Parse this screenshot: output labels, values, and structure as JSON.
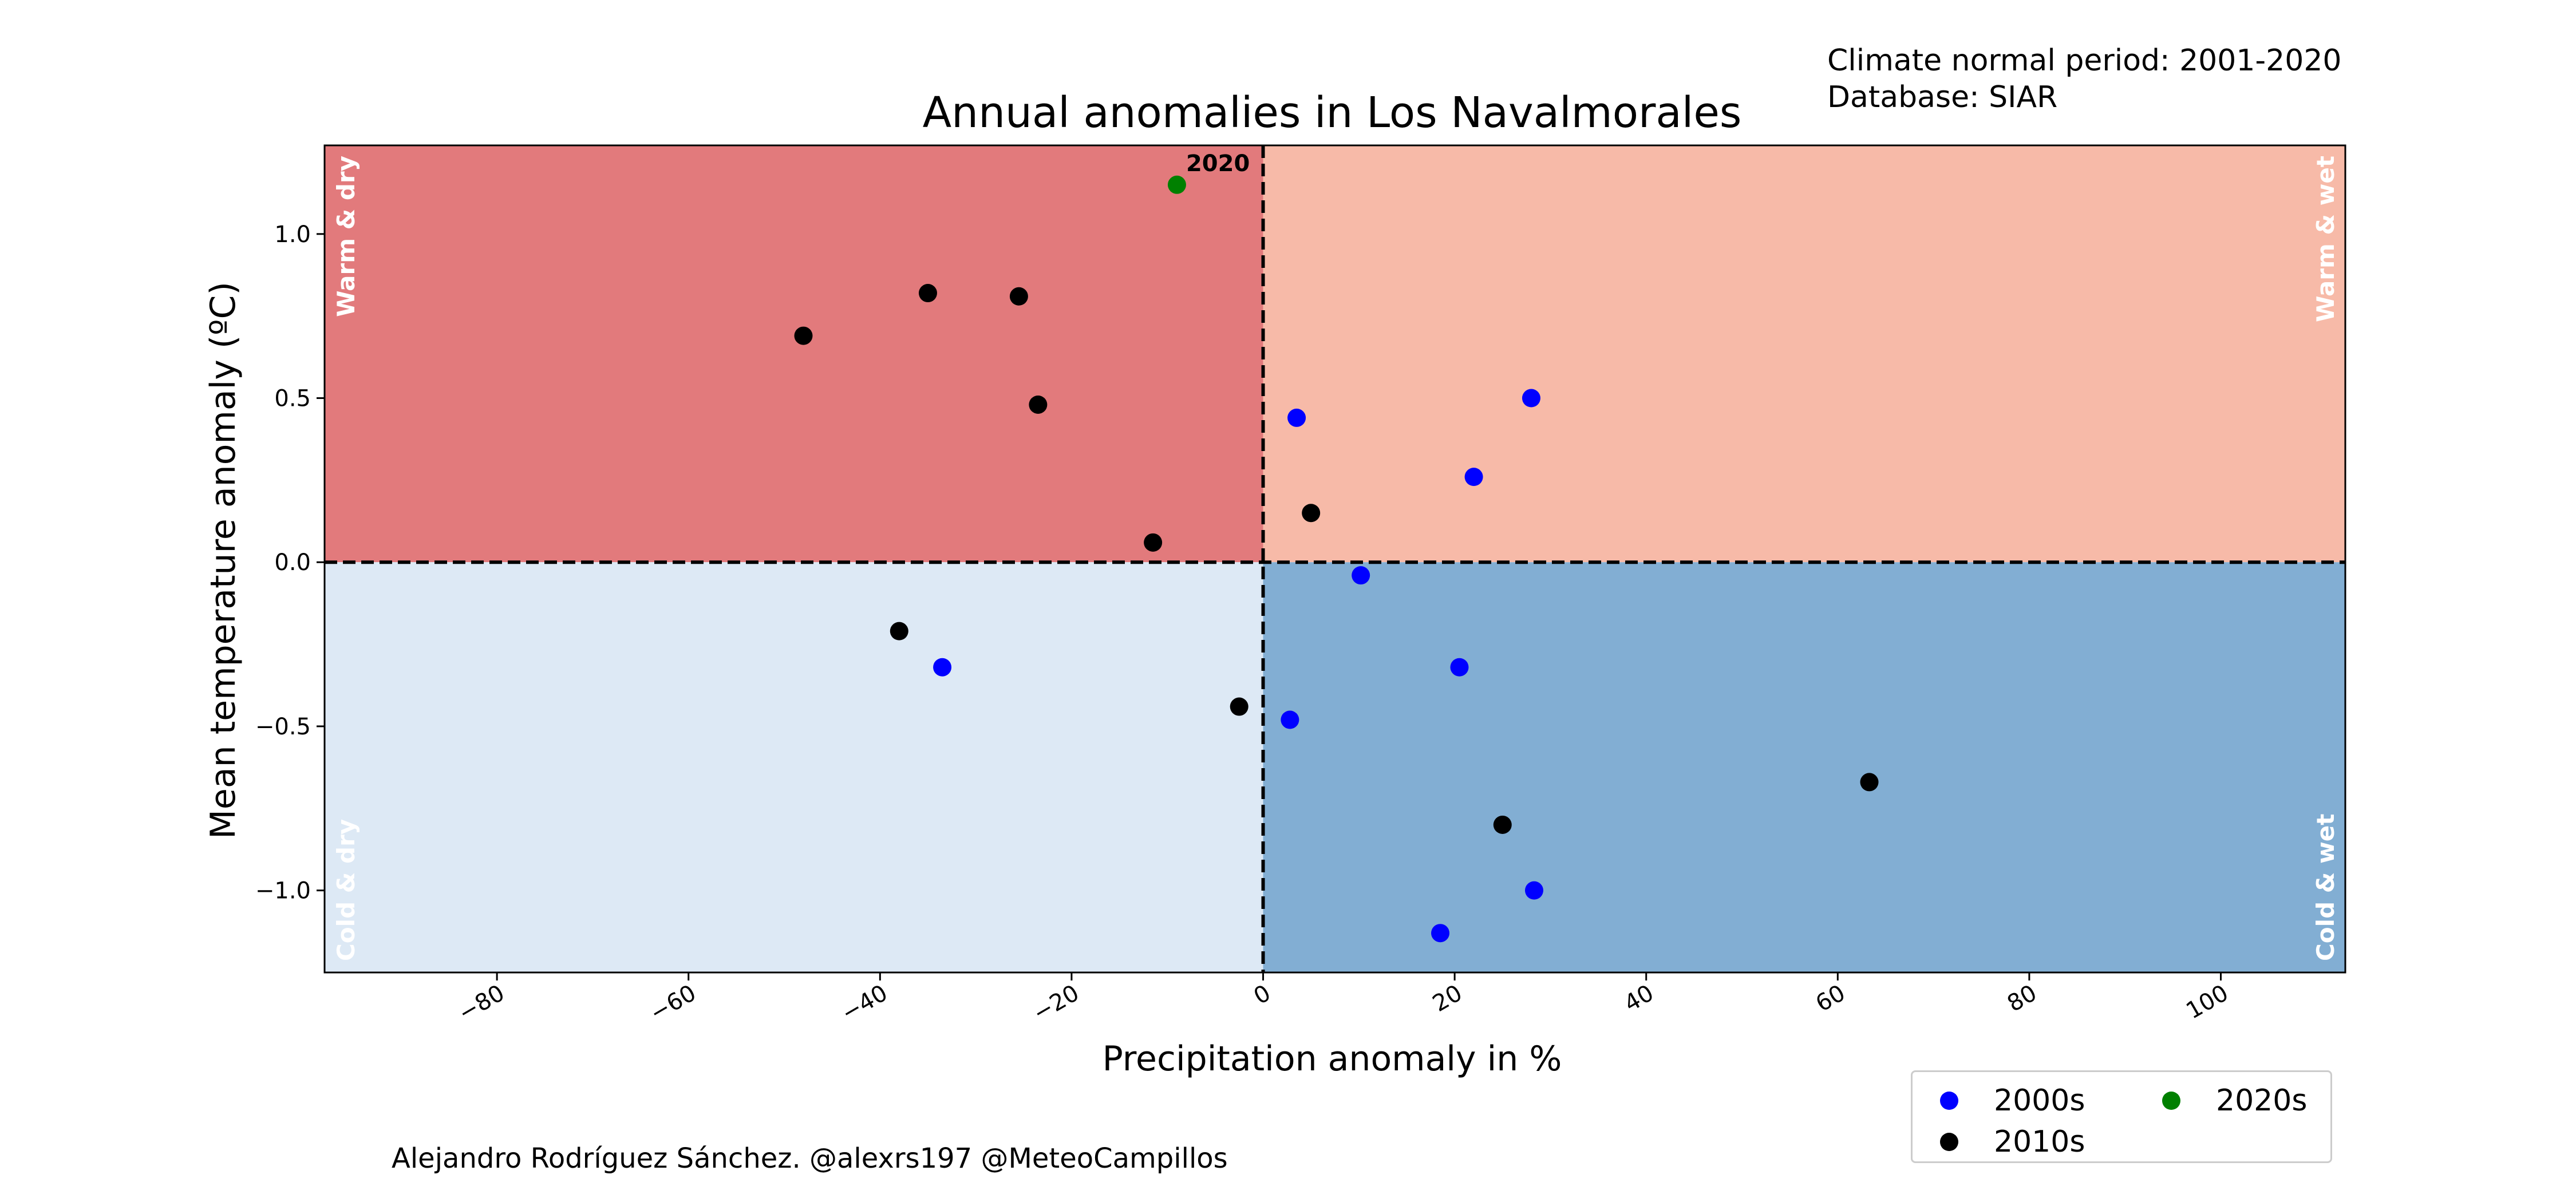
{
  "colors": {
    "warm_dry": "#e27a7c",
    "warm_wet": "#f7baa8",
    "cold_dry": "#dde9f5",
    "cold_wet": "#82aed3",
    "decade_2000s": "#0000ff",
    "decade_2010s": "#000000",
    "decade_2020s": "#008000"
  },
  "notes": {
    "period": "Climate normal period: 2001-2020",
    "database": "Database: SIAR"
  },
  "credit": "Alejandro Rodríguez Sánchez. @alexrs197 @MeteoCampillos",
  "chart_data": {
    "type": "scatter",
    "title": "Annual anomalies in Los Navalmorales",
    "xlabel": "Precipitation anomaly in %",
    "ylabel": "Mean temperature anomaly (ºC)",
    "xlim": [
      -98,
      113
    ],
    "ylim": [
      -1.25,
      1.27
    ],
    "xticks": [
      -80,
      -60,
      -40,
      -20,
      0,
      20,
      40,
      60,
      80,
      100
    ],
    "xtick_labels": [
      "−80",
      "−60",
      "−40",
      "−20",
      "0",
      "20",
      "40",
      "60",
      "80",
      "100"
    ],
    "yticks": [
      -1.0,
      -0.5,
      0.0,
      0.5,
      1.0
    ],
    "ytick_labels": [
      "−1.0",
      "−0.5",
      "0.0",
      "0.5",
      "1.0"
    ],
    "grid": false,
    "legend_position": "bottom-right, below plot",
    "quadrant_labels": {
      "warm_dry": "Warm & dry",
      "warm_wet": "Warm & wet",
      "cold_dry": "Cold & dry",
      "cold_wet": "Cold & wet"
    },
    "series": [
      {
        "name": "2000s",
        "color": "#0000ff",
        "points": [
          {
            "x": 3.5,
            "y": 0.44
          },
          {
            "x": 28,
            "y": 0.5
          },
          {
            "x": 22,
            "y": 0.26
          },
          {
            "x": 10.2,
            "y": -0.04
          },
          {
            "x": -33.5,
            "y": -0.32
          },
          {
            "x": 20.5,
            "y": -0.32
          },
          {
            "x": 2.8,
            "y": -0.48
          },
          {
            "x": 28.3,
            "y": -1.0
          },
          {
            "x": 18.5,
            "y": -1.13
          }
        ]
      },
      {
        "name": "2010s",
        "color": "#000000",
        "points": [
          {
            "x": -35,
            "y": 0.82
          },
          {
            "x": -25.5,
            "y": 0.81
          },
          {
            "x": -48,
            "y": 0.69
          },
          {
            "x": -23.5,
            "y": 0.48
          },
          {
            "x": -11.5,
            "y": 0.06
          },
          {
            "x": 5,
            "y": 0.15
          },
          {
            "x": -38,
            "y": -0.21
          },
          {
            "x": -2.5,
            "y": -0.44
          },
          {
            "x": 63.3,
            "y": -0.67
          },
          {
            "x": 25,
            "y": -0.8
          }
        ]
      },
      {
        "name": "2020s",
        "color": "#008000",
        "points": [
          {
            "x": -9,
            "y": 1.15,
            "label": "2020"
          }
        ]
      }
    ]
  }
}
